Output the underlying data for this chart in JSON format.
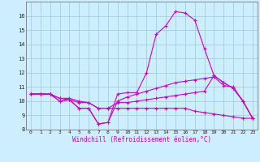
{
  "x": [
    0,
    1,
    2,
    3,
    4,
    5,
    6,
    7,
    8,
    9,
    10,
    11,
    12,
    13,
    14,
    15,
    16,
    17,
    18,
    19,
    20,
    21,
    22,
    23
  ],
  "line1": [
    10.5,
    10.5,
    10.5,
    10.0,
    10.1,
    9.5,
    9.5,
    8.4,
    8.5,
    10.5,
    10.6,
    10.6,
    12.0,
    14.7,
    15.3,
    16.3,
    16.2,
    15.7,
    13.7,
    11.8,
    11.3,
    10.9,
    10.0,
    8.8
  ],
  "line2": [
    10.5,
    10.5,
    10.5,
    10.0,
    10.1,
    9.5,
    9.5,
    8.4,
    8.5,
    10.0,
    10.3,
    10.5,
    10.7,
    10.9,
    11.1,
    11.3,
    11.4,
    11.5,
    11.6,
    11.7,
    11.1,
    11.0,
    10.0,
    8.8
  ],
  "line3": [
    10.5,
    10.5,
    10.5,
    10.2,
    10.1,
    9.9,
    9.9,
    9.5,
    9.5,
    9.9,
    9.9,
    10.0,
    10.1,
    10.2,
    10.3,
    10.4,
    10.5,
    10.6,
    10.7,
    11.8,
    11.3,
    10.9,
    10.0,
    8.8
  ],
  "line4": [
    10.5,
    10.5,
    10.5,
    10.2,
    10.2,
    10.0,
    9.9,
    9.5,
    9.5,
    9.5,
    9.5,
    9.5,
    9.5,
    9.5,
    9.5,
    9.5,
    9.5,
    9.3,
    9.2,
    9.1,
    9.0,
    8.9,
    8.8,
    8.8
  ],
  "color": "#cc00cc",
  "bg_color": "#cceeff",
  "grid_color": "#99cccc",
  "xlabel": "Windchill (Refroidissement éolien,°C)",
  "ylim": [
    8,
    17
  ],
  "xlim": [
    -0.5,
    23.5
  ],
  "yticks": [
    8,
    9,
    10,
    11,
    12,
    13,
    14,
    15,
    16
  ],
  "xticks": [
    0,
    1,
    2,
    3,
    4,
    5,
    6,
    7,
    8,
    9,
    10,
    11,
    12,
    13,
    14,
    15,
    16,
    17,
    18,
    19,
    20,
    21,
    22,
    23
  ]
}
